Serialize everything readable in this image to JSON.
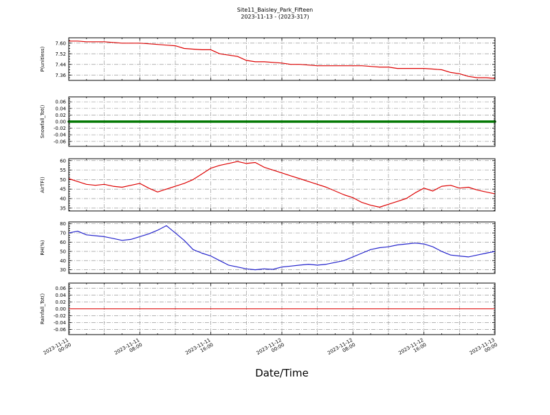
{
  "title": {
    "line1": "Site11_Baisley_Park_Fifteen",
    "line2": "2023-11-13 - (2023-317)"
  },
  "xlabel": "Date/Time",
  "x_axis": {
    "lim": [
      0,
      48
    ],
    "tick_positions": [
      0,
      8,
      16,
      24,
      32,
      40,
      48
    ],
    "tick_labels": [
      [
        "2023-11-11",
        "00:00"
      ],
      [
        "2023-11-11",
        "08:00"
      ],
      [
        "2023-11-11",
        "16:00"
      ],
      [
        "2023-11-12",
        "00:00"
      ],
      [
        "2023-11-12",
        "08:00"
      ],
      [
        "2023-11-12",
        "16:00"
      ],
      [
        "2023-11-13",
        "00:00"
      ]
    ]
  },
  "chart_data": [
    {
      "type": "line",
      "name": "P",
      "ylabel": "P(unitless)",
      "color": "#dd0000",
      "line_width": 1.2,
      "yticks": [
        "7.36",
        "7.44",
        "7.52",
        "7.60"
      ],
      "ylim": [
        7.32,
        7.64
      ],
      "x": [
        0,
        1,
        2,
        3,
        4,
        5,
        6,
        7,
        8,
        9,
        10,
        11,
        12,
        13,
        14,
        15,
        16,
        17,
        18,
        19,
        20,
        21,
        22,
        23,
        24,
        25,
        26,
        27,
        28,
        29,
        30,
        31,
        32,
        33,
        34,
        35,
        36,
        37,
        38,
        39,
        40,
        41,
        42,
        43,
        44,
        45,
        46,
        47,
        48
      ],
      "y": [
        7.615,
        7.615,
        7.61,
        7.61,
        7.61,
        7.605,
        7.6,
        7.6,
        7.6,
        7.595,
        7.59,
        7.585,
        7.58,
        7.56,
        7.555,
        7.55,
        7.55,
        7.52,
        7.51,
        7.5,
        7.47,
        7.46,
        7.46,
        7.455,
        7.45,
        7.44,
        7.44,
        7.435,
        7.43,
        7.43,
        7.43,
        7.43,
        7.43,
        7.43,
        7.425,
        7.42,
        7.42,
        7.41,
        7.41,
        7.41,
        7.41,
        7.405,
        7.4,
        7.38,
        7.37,
        7.35,
        7.34,
        7.34,
        7.335
      ]
    },
    {
      "type": "line",
      "name": "Snowfall_Tot",
      "ylabel": "Snowfall_Tot()",
      "color": "#007700",
      "line_width": 3.5,
      "yticks": [
        "-0.06",
        "-0.04",
        "-0.02",
        "0.00",
        "0.02",
        "0.04",
        "0.06"
      ],
      "ylim": [
        -0.075,
        0.075
      ],
      "x": [
        0,
        48
      ],
      "y": [
        0,
        0
      ]
    },
    {
      "type": "line",
      "name": "AirTF",
      "ylabel": "AirTF()",
      "color": "#dd0000",
      "line_width": 1.2,
      "yticks": [
        "35",
        "40",
        "45",
        "50",
        "55",
        "60"
      ],
      "ylim": [
        33.5,
        61
      ],
      "x": [
        0,
        1,
        2,
        3,
        4,
        5,
        6,
        7,
        8,
        9,
        10,
        11,
        12,
        13,
        14,
        15,
        16,
        17,
        18,
        19,
        20,
        21,
        22,
        23,
        24,
        25,
        26,
        27,
        28,
        29,
        30,
        31,
        32,
        33,
        34,
        35,
        36,
        37,
        38,
        39,
        40,
        41,
        42,
        43,
        44,
        45,
        46,
        47,
        48
      ],
      "y": [
        50.5,
        49,
        47.5,
        47,
        47.5,
        46.5,
        46,
        47,
        48,
        45.5,
        43.5,
        45,
        46.5,
        48,
        50,
        53,
        56,
        57.5,
        58.5,
        59.5,
        58.5,
        59,
        56.5,
        55,
        53.5,
        52,
        50.5,
        49,
        47.5,
        46,
        44,
        42,
        40.5,
        38,
        36.5,
        35.5,
        37,
        38.5,
        40,
        43,
        45.5,
        44,
        46.5,
        47,
        45.5,
        46,
        44.5,
        43.5,
        42.5
      ]
    },
    {
      "type": "line",
      "name": "RH",
      "ylabel": "RH(%)",
      "color": "#2222cc",
      "line_width": 1.2,
      "yticks": [
        "30",
        "40",
        "50",
        "60",
        "70",
        "80"
      ],
      "ylim": [
        26,
        82
      ],
      "x": [
        0,
        1,
        2,
        3,
        4,
        5,
        6,
        7,
        8,
        9,
        10,
        11,
        12,
        13,
        14,
        15,
        16,
        17,
        18,
        19,
        20,
        21,
        22,
        23,
        24,
        25,
        26,
        27,
        28,
        29,
        30,
        31,
        32,
        33,
        34,
        35,
        36,
        37,
        38,
        39,
        40,
        41,
        42,
        43,
        44,
        45,
        46,
        47,
        48
      ],
      "y": [
        70,
        72,
        68,
        67,
        66,
        64,
        62,
        63,
        66,
        69,
        73,
        78,
        70,
        62,
        52,
        48,
        45,
        40,
        35,
        33,
        31,
        30,
        31,
        30.5,
        33,
        34,
        35,
        36,
        35,
        36,
        38,
        40,
        44,
        48,
        52,
        54,
        55,
        57,
        58,
        59,
        58,
        55,
        50,
        46,
        45,
        44,
        46,
        48,
        50
      ]
    },
    {
      "type": "line",
      "name": "Rainfall_Tot",
      "ylabel": "Rainfall_Tot()",
      "color": "#dd0000",
      "line_width": 1,
      "yticks": [
        "-0.06",
        "-0.04",
        "-0.02",
        "0.00",
        "0.02",
        "0.04",
        "0.06"
      ],
      "ylim": [
        -0.075,
        0.075
      ],
      "x": [
        0,
        48
      ],
      "y": [
        0,
        0
      ]
    }
  ]
}
